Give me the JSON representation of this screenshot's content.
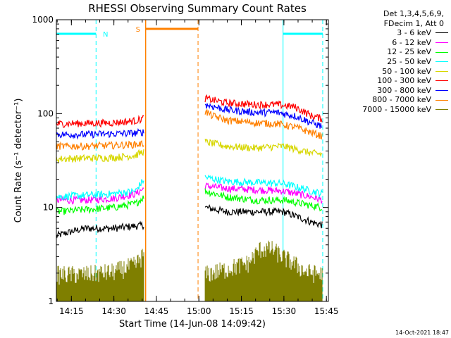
{
  "chart_data": {
    "type": "line",
    "title": "RHESSI Observing Summary Count Rates",
    "xlabel": "Start Time (14-Jun-08 14:09:42)",
    "ylabel": "Count Rate (s⁻¹ detector⁻¹)",
    "yscale": "log",
    "ylim": [
      1,
      1000
    ],
    "xlim_minutes": [
      0,
      96
    ],
    "x_ticks": [
      "14:15",
      "14:30",
      "14:45",
      "15:00",
      "15:15",
      "15:30",
      "15:45"
    ],
    "y_ticks": [
      "1",
      "10",
      "100",
      "1000"
    ],
    "footer_stamp": "14-Oct-2021 18:47",
    "legend_header": [
      "Det 1,3,4,5,6,9,",
      "FDecim 1, Att 0"
    ],
    "markers": [
      {
        "label": "N",
        "color": "#00ffff",
        "start_min": 0,
        "end_min": 14
      },
      {
        "label": "S",
        "color": "#ff8000",
        "start_min": 31.5,
        "end_min": 50
      },
      {
        "label": "",
        "color": "#00ffff",
        "start_min": 80,
        "end_min": 94
      }
    ],
    "data_gap_minutes": [
      31.5,
      52.5
    ],
    "series": [
      {
        "name": "3 - 6 keV",
        "color": "#000000",
        "segments": [
          {
            "x": [
              0,
              10,
              20,
              31
            ],
            "y": [
              5,
              6,
              6,
              6.5
            ]
          },
          {
            "x": [
              52.5,
              60,
              70,
              80,
              90,
              94
            ],
            "y": [
              10,
              9,
              9,
              9,
              7,
              6.5
            ]
          }
        ]
      },
      {
        "name": "6 - 12 keV",
        "color": "#ff00ff",
        "segments": [
          {
            "x": [
              0,
              10,
              20,
              28,
              31
            ],
            "y": [
              12,
              12,
              12.5,
              14,
              16
            ]
          },
          {
            "x": [
              52.5,
              60,
              70,
              80,
              90,
              94
            ],
            "y": [
              17,
              16,
              15.5,
              15,
              13,
              12
            ]
          }
        ]
      },
      {
        "name": "12 - 25 keV",
        "color": "#00ff00",
        "segments": [
          {
            "x": [
              0,
              10,
              20,
              28,
              31
            ],
            "y": [
              9,
              9.5,
              10,
              11,
              13
            ]
          },
          {
            "x": [
              52.5,
              60,
              70,
              80,
              90,
              94
            ],
            "y": [
              15,
              13,
              12,
              12,
              10.5,
              10
            ]
          }
        ]
      },
      {
        "name": "25 - 50 keV",
        "color": "#00ffff",
        "segments": [
          {
            "x": [
              0,
              10,
              20,
              28,
              31
            ],
            "y": [
              13,
              13.5,
              14,
              15,
              20
            ]
          },
          {
            "x": [
              52.5,
              60,
              70,
              80,
              90,
              94
            ],
            "y": [
              21,
              19,
              18.5,
              18,
              15,
              14
            ]
          }
        ]
      },
      {
        "name": "50 - 100 keV",
        "color": "#d7d700",
        "segments": [
          {
            "x": [
              0,
              10,
              20,
              28,
              31
            ],
            "y": [
              33,
              33.5,
              34,
              36,
              40
            ]
          },
          {
            "x": [
              52.5,
              60,
              70,
              80,
              90,
              94
            ],
            "y": [
              50,
              45,
              43,
              45,
              38,
              37
            ]
          }
        ]
      },
      {
        "name": "100 - 300 keV",
        "color": "#ff0000",
        "segments": [
          {
            "x": [
              0,
              10,
              20,
              28,
              31
            ],
            "y": [
              78,
              79,
              80,
              84,
              90
            ]
          },
          {
            "x": [
              52.5,
              55,
              60,
              70,
              78,
              84,
              90,
              94
            ],
            "y": [
              145,
              140,
              130,
              125,
              125,
              118,
              95,
              88
            ]
          }
        ]
      },
      {
        "name": "300 - 800 keV",
        "color": "#0000ff",
        "segments": [
          {
            "x": [
              0,
              10,
              20,
              28,
              31
            ],
            "y": [
              60,
              60,
              61,
              62,
              64
            ]
          },
          {
            "x": [
              52.5,
              55,
              60,
              70,
              78,
              84,
              90,
              94
            ],
            "y": [
              125,
              120,
              110,
              103,
              103,
              95,
              80,
              73
            ]
          }
        ]
      },
      {
        "name": "800 - 7000 keV",
        "color": "#ff8000",
        "segments": [
          {
            "x": [
              0,
              10,
              20,
              28,
              31
            ],
            "y": [
              45,
              45,
              46,
              47,
              48
            ]
          },
          {
            "x": [
              52.5,
              55,
              60,
              70,
              78,
              84,
              90,
              94
            ],
            "y": [
              105,
              95,
              85,
              80,
              78,
              72,
              63,
              57
            ]
          }
        ]
      },
      {
        "name": "7000 - 15000 keV",
        "color": "#7f7f00",
        "segments": [
          {
            "x": [
              0,
              10,
              20,
              28,
              31
            ],
            "y": [
              1.5,
              1.5,
              1.6,
              1.9,
              2.5
            ]
          },
          {
            "x": [
              52.5,
              60,
              68,
              72,
              76,
              80,
              88,
              94
            ],
            "y": [
              1.5,
              1.7,
              2.0,
              2.8,
              2.8,
              2.3,
              1.6,
              1.5
            ]
          }
        ]
      }
    ]
  }
}
